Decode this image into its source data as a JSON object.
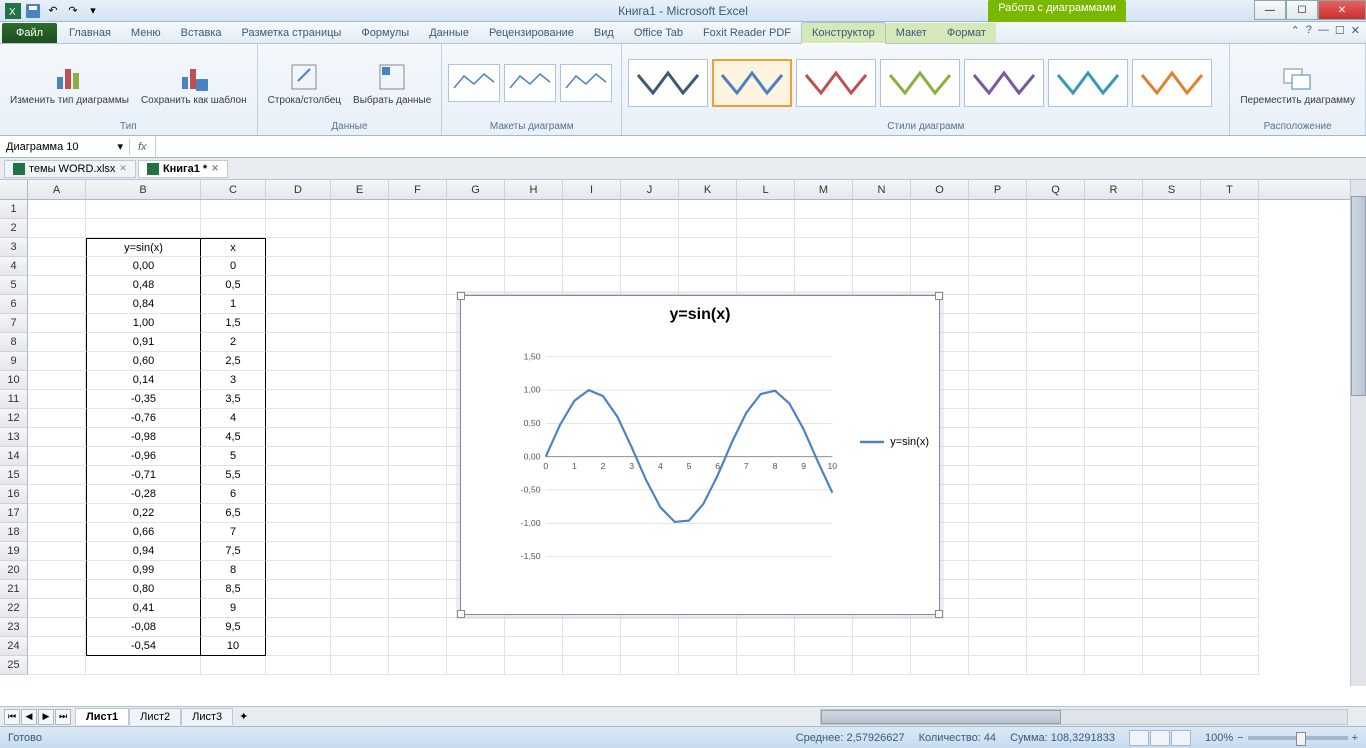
{
  "titlebar": {
    "app_title": "Книга1  -  Microsoft Excel",
    "contextual_tab_group": "Работа с диаграммами"
  },
  "ribbon_tabs": {
    "file": "Файл",
    "items": [
      "Главная",
      "Меню",
      "Вставка",
      "Разметка страницы",
      "Формулы",
      "Данные",
      "Рецензирование",
      "Вид",
      "Office Tab",
      "Foxit Reader PDF"
    ],
    "contextual": [
      "Конструктор",
      "Макет",
      "Формат"
    ],
    "active": "Конструктор"
  },
  "ribbon_groups": {
    "type": {
      "label": "Тип",
      "btn1": "Изменить тип\nдиаграммы",
      "btn2": "Сохранить\nкак шаблон"
    },
    "data": {
      "label": "Данные",
      "btn1": "Строка/столбец",
      "btn2": "Выбрать\nданные"
    },
    "layouts": {
      "label": "Макеты диаграмм"
    },
    "styles": {
      "label": "Стили диаграмм"
    },
    "location": {
      "label": "Расположение",
      "btn1": "Переместить\nдиаграмму"
    }
  },
  "chart_styles": {
    "colors": [
      "#3b5a7a",
      "#4a82c4",
      "#c05050",
      "#8ab040",
      "#7858a0",
      "#3898b8",
      "#e08030"
    ],
    "selected_index": 1
  },
  "name_box": "Диаграмма 10",
  "fx_label": "fx",
  "workbook_tabs": [
    {
      "name": "темы WORD.xlsx",
      "active": false
    },
    {
      "name": "Книга1 *",
      "active": true
    }
  ],
  "columns": {
    "letters": [
      "A",
      "B",
      "C",
      "D",
      "E",
      "F",
      "G",
      "H",
      "I",
      "J",
      "K",
      "L",
      "M",
      "N",
      "O",
      "P",
      "Q",
      "R",
      "S",
      "T"
    ],
    "widths": [
      58,
      115,
      65,
      65,
      58,
      58,
      58,
      58,
      58,
      58,
      58,
      58,
      58,
      58,
      58,
      58,
      58,
      58,
      58,
      58
    ]
  },
  "row_start": 1,
  "row_end": 25,
  "table": {
    "header_row": 3,
    "header_b": "y=sin(x)",
    "header_c": "x",
    "rows": [
      {
        "b": "0,00",
        "c": "0"
      },
      {
        "b": "0,48",
        "c": "0,5"
      },
      {
        "b": "0,84",
        "c": "1"
      },
      {
        "b": "1,00",
        "c": "1,5"
      },
      {
        "b": "0,91",
        "c": "2"
      },
      {
        "b": "0,60",
        "c": "2,5"
      },
      {
        "b": "0,14",
        "c": "3"
      },
      {
        "b": "-0,35",
        "c": "3,5"
      },
      {
        "b": "-0,76",
        "c": "4"
      },
      {
        "b": "-0,98",
        "c": "4,5"
      },
      {
        "b": "-0,96",
        "c": "5"
      },
      {
        "b": "-0,71",
        "c": "5,5"
      },
      {
        "b": "-0,28",
        "c": "6"
      },
      {
        "b": "0,22",
        "c": "6,5"
      },
      {
        "b": "0,66",
        "c": "7"
      },
      {
        "b": "0,94",
        "c": "7,5"
      },
      {
        "b": "0,99",
        "c": "8"
      },
      {
        "b": "0,80",
        "c": "8,5"
      },
      {
        "b": "0,41",
        "c": "9"
      },
      {
        "b": "-0,08",
        "c": "9,5"
      },
      {
        "b": "-0,54",
        "c": "10"
      }
    ]
  },
  "chart": {
    "title": "y=sin(x)",
    "legend": "y=sin(x)",
    "legend_line_color": "#4a82c4",
    "line_color": "#4a82c4",
    "line_width": 2.5,
    "background": "#ffffff",
    "grid_color": "#bfbfbf",
    "axis_color": "#808080",
    "x_ticks": [
      0,
      1,
      2,
      3,
      4,
      5,
      6,
      7,
      8,
      9,
      10
    ],
    "y_ticks": [
      "1,50",
      "1,00",
      "0,50",
      "0,00",
      "-0,50",
      "-1,00",
      "-1,50"
    ],
    "y_min": -1.5,
    "y_max": 1.5,
    "x_min": 0,
    "x_max": 10,
    "data_x": [
      0,
      0.5,
      1,
      1.5,
      2,
      2.5,
      3,
      3.5,
      4,
      4.5,
      5,
      5.5,
      6,
      6.5,
      7,
      7.5,
      8,
      8.5,
      9,
      9.5,
      10
    ],
    "data_y": [
      0,
      0.48,
      0.84,
      1.0,
      0.91,
      0.6,
      0.14,
      -0.35,
      -0.76,
      -0.98,
      -0.96,
      -0.71,
      -0.28,
      0.22,
      0.66,
      0.94,
      0.99,
      0.8,
      0.41,
      -0.08,
      -0.54
    ]
  },
  "sheet_tabs": {
    "items": [
      "Лист1",
      "Лист2",
      "Лист3"
    ],
    "active": 0
  },
  "statusbar": {
    "ready": "Готово",
    "avg_label": "Среднее:",
    "avg": "2,57926627",
    "count_label": "Количество:",
    "count": "44",
    "sum_label": "Сумма:",
    "sum": "108,3291833",
    "zoom": "100%"
  }
}
